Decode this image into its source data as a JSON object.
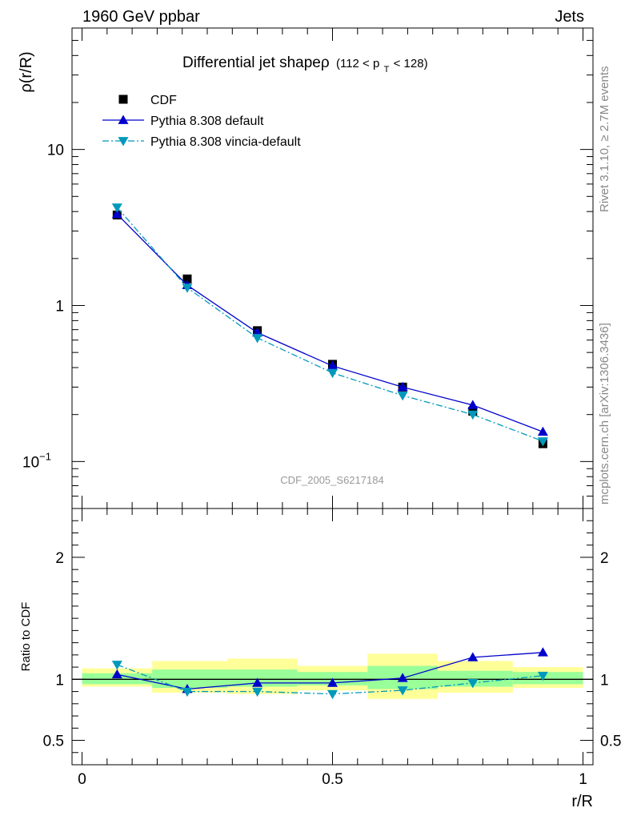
{
  "header": {
    "left": "1960 GeV ppbar",
    "right": "Jets"
  },
  "side_labels": {
    "rivet": "Rivet 3.1.10, ≥ 2.7M events",
    "mcplots": "mcplots.cern.ch [arXiv:1306.3436]"
  },
  "chart_data": [
    {
      "type": "line",
      "title": "Differential jet shapeρ",
      "title_suffix": "(112 < p",
      "title_sub": "T",
      "title_end": " < 128)",
      "ylabel": "ρ(r/R)",
      "yscale": "log",
      "ylim": [
        0.05,
        60
      ],
      "xlim": [
        -0.02,
        1.02
      ],
      "y_ticks": [
        {
          "value": 10,
          "label": "10"
        },
        {
          "value": 1,
          "label": "1"
        },
        {
          "value": 0.1,
          "label": "10",
          "sup": "−1"
        }
      ],
      "watermark": "CDF_2005_S6217184",
      "x": [
        0.07,
        0.21,
        0.35,
        0.5,
        0.64,
        0.78,
        0.92
      ],
      "series": [
        {
          "name": "CDF",
          "style": "data",
          "color": "#000000",
          "values": [
            3.8,
            1.48,
            0.69,
            0.42,
            0.3,
            0.21,
            0.13
          ]
        },
        {
          "name": "Pythia 8.308 default",
          "style": "solid",
          "marker": "triangle-up",
          "color": "#0000cc",
          "values": [
            3.85,
            1.35,
            0.67,
            0.41,
            0.3,
            0.23,
            0.155
          ]
        },
        {
          "name": "Pythia 8.308 vincia-default",
          "style": "dashdot",
          "marker": "triangle-down",
          "color": "#0099bb",
          "values": [
            4.25,
            1.3,
            0.62,
            0.37,
            0.265,
            0.2,
            0.135
          ]
        }
      ]
    },
    {
      "type": "line",
      "ylabel": "Ratio to CDF",
      "xlabel": "r/R",
      "ylim": [
        0.3,
        2.4
      ],
      "xlim": [
        -0.02,
        1.02
      ],
      "y_ticks": [
        {
          "value": 2,
          "label": "2"
        },
        {
          "value": 1,
          "label": "1"
        },
        {
          "value": 0.5,
          "label": "0.5"
        }
      ],
      "x_ticks": [
        {
          "value": 0,
          "label": "0"
        },
        {
          "value": 0.5,
          "label": "0.5"
        },
        {
          "value": 1,
          "label": "1"
        }
      ],
      "bands": [
        {
          "x0": 0.0,
          "x1": 0.14,
          "yellow": [
            0.94,
            1.09
          ],
          "green": [
            0.96,
            1.05
          ]
        },
        {
          "x0": 0.14,
          "x1": 0.29,
          "yellow": [
            0.89,
            1.15
          ],
          "green": [
            0.93,
            1.08
          ]
        },
        {
          "x0": 0.29,
          "x1": 0.43,
          "yellow": [
            0.88,
            1.17
          ],
          "green": [
            0.94,
            1.08
          ]
        },
        {
          "x0": 0.43,
          "x1": 0.57,
          "yellow": [
            0.91,
            1.11
          ],
          "green": [
            0.95,
            1.06
          ]
        },
        {
          "x0": 0.57,
          "x1": 0.71,
          "yellow": [
            0.84,
            1.21
          ],
          "green": [
            0.92,
            1.11
          ]
        },
        {
          "x0": 0.71,
          "x1": 0.86,
          "yellow": [
            0.89,
            1.15
          ],
          "green": [
            0.94,
            1.07
          ]
        },
        {
          "x0": 0.86,
          "x1": 1.0,
          "yellow": [
            0.93,
            1.1
          ],
          "green": [
            0.96,
            1.06
          ]
        }
      ],
      "x": [
        0.07,
        0.21,
        0.35,
        0.5,
        0.64,
        0.78,
        0.92
      ],
      "series": [
        {
          "name": "Pythia 8.308 default",
          "style": "solid",
          "marker": "triangle-up",
          "color": "#0000cc",
          "values": [
            1.04,
            0.92,
            0.97,
            0.97,
            1.01,
            1.18,
            1.22
          ]
        },
        {
          "name": "Pythia 8.308 vincia-default",
          "style": "dashdot",
          "marker": "triangle-down",
          "color": "#0099bb",
          "values": [
            1.12,
            0.9,
            0.9,
            0.88,
            0.91,
            0.97,
            1.03
          ]
        }
      ]
    }
  ],
  "colors": {
    "band_yellow": "#ffff99",
    "band_green": "#99ff99"
  }
}
